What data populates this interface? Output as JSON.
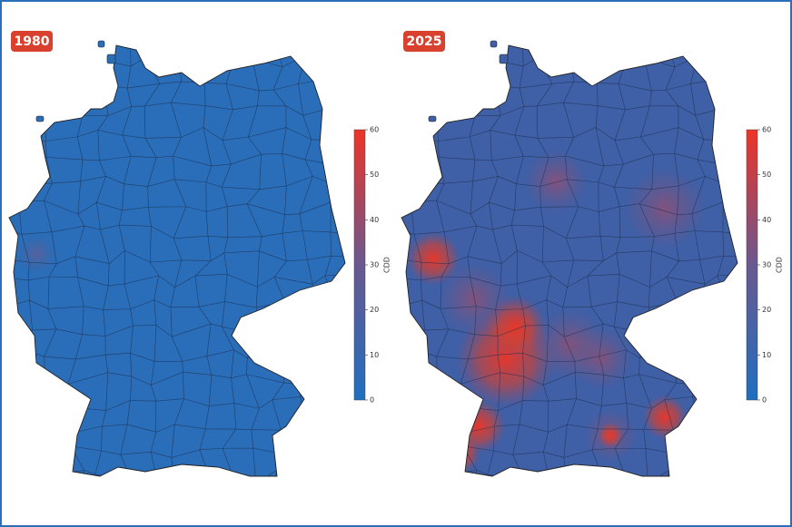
{
  "maps": [
    {
      "label": "1980"
    },
    {
      "label": "2025"
    }
  ],
  "colorbar": {
    "label": "CDD",
    "lim": [
      0,
      60
    ],
    "ticks": [
      0,
      10,
      20,
      30,
      40,
      50,
      60
    ],
    "colors": [
      "#1f6fc0",
      "#6a5890",
      "#ee3426"
    ]
  }
}
